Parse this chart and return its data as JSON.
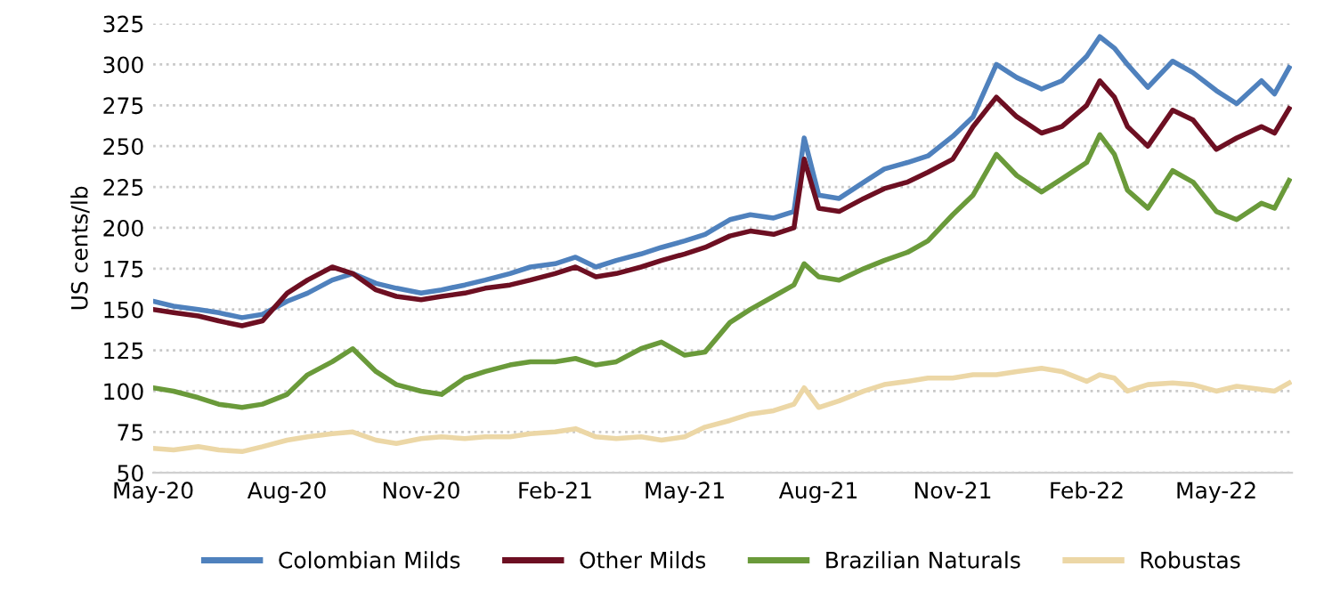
{
  "chart_data": {
    "type": "line",
    "ylabel": "US cents/lb",
    "x": [
      "2020-05-01",
      "2020-05-15",
      "2020-06-01",
      "2020-06-15",
      "2020-07-01",
      "2020-07-15",
      "2020-08-01",
      "2020-08-15",
      "2020-09-01",
      "2020-09-15",
      "2020-10-01",
      "2020-10-15",
      "2020-11-01",
      "2020-11-15",
      "2020-12-01",
      "2020-12-15",
      "2021-01-01",
      "2021-01-15",
      "2021-02-01",
      "2021-02-15",
      "2021-03-01",
      "2021-03-15",
      "2021-04-01",
      "2021-04-15",
      "2021-05-01",
      "2021-05-15",
      "2021-06-01",
      "2021-06-15",
      "2021-07-01",
      "2021-07-15",
      "2021-07-22",
      "2021-08-01",
      "2021-08-15",
      "2021-09-01",
      "2021-09-15",
      "2021-10-01",
      "2021-10-15",
      "2021-11-01",
      "2021-11-15",
      "2021-12-01",
      "2021-12-15",
      "2022-01-01",
      "2022-01-15",
      "2022-02-01",
      "2022-02-10",
      "2022-02-20",
      "2022-03-01",
      "2022-03-15",
      "2022-04-01",
      "2022-04-15",
      "2022-05-01",
      "2022-05-15",
      "2022-06-01",
      "2022-06-10",
      "2022-06-20"
    ],
    "series": [
      {
        "name": "Colombian Milds",
        "color": "#4f81bd",
        "values": [
          155,
          152,
          150,
          148,
          145,
          147,
          155,
          160,
          168,
          172,
          166,
          163,
          160,
          162,
          165,
          168,
          172,
          176,
          178,
          182,
          176,
          180,
          184,
          188,
          192,
          196,
          205,
          208,
          206,
          210,
          255,
          220,
          218,
          228,
          236,
          240,
          244,
          256,
          268,
          300,
          292,
          285,
          290,
          305,
          317,
          310,
          300,
          286,
          302,
          295,
          284,
          276,
          290,
          282,
          298
        ]
      },
      {
        "name": "Other Milds",
        "color": "#6d0f22",
        "values": [
          150,
          148,
          146,
          143,
          140,
          143,
          160,
          168,
          176,
          172,
          162,
          158,
          156,
          158,
          160,
          163,
          165,
          168,
          172,
          176,
          170,
          172,
          176,
          180,
          184,
          188,
          195,
          198,
          196,
          200,
          242,
          212,
          210,
          218,
          224,
          228,
          234,
          242,
          262,
          280,
          268,
          258,
          262,
          275,
          290,
          280,
          262,
          250,
          272,
          266,
          248,
          255,
          262,
          258,
          273
        ]
      },
      {
        "name": "Brazilian Naturals",
        "color": "#6a9a3a",
        "values": [
          102,
          100,
          96,
          92,
          90,
          92,
          98,
          110,
          118,
          126,
          112,
          104,
          100,
          98,
          108,
          112,
          116,
          118,
          118,
          120,
          116,
          118,
          126,
          130,
          122,
          124,
          142,
          150,
          158,
          165,
          178,
          170,
          168,
          175,
          180,
          185,
          192,
          208,
          220,
          245,
          232,
          222,
          230,
          240,
          257,
          245,
          223,
          212,
          235,
          228,
          210,
          205,
          215,
          212,
          229
        ]
      },
      {
        "name": "Robustas",
        "color": "#ecd7a6",
        "values": [
          65,
          64,
          66,
          64,
          63,
          66,
          70,
          72,
          74,
          75,
          70,
          68,
          71,
          72,
          71,
          72,
          72,
          74,
          75,
          77,
          72,
          71,
          72,
          70,
          72,
          78,
          82,
          86,
          88,
          92,
          102,
          90,
          94,
          100,
          104,
          106,
          108,
          108,
          110,
          110,
          112,
          114,
          112,
          106,
          110,
          108,
          100,
          104,
          105,
          104,
          100,
          103,
          101,
          100,
          105
        ]
      }
    ],
    "xlim": [
      "2020-05-01",
      "2022-06-22"
    ],
    "xticks": [
      {
        "value": "2020-05-01",
        "label": "May-20"
      },
      {
        "value": "2020-08-01",
        "label": "Aug-20"
      },
      {
        "value": "2020-11-01",
        "label": "Nov-20"
      },
      {
        "value": "2021-02-01",
        "label": "Feb-21"
      },
      {
        "value": "2021-05-01",
        "label": "May-21"
      },
      {
        "value": "2021-08-01",
        "label": "Aug-21"
      },
      {
        "value": "2021-11-01",
        "label": "Nov-21"
      },
      {
        "value": "2022-02-01",
        "label": "Feb-22"
      },
      {
        "value": "2022-05-01",
        "label": "May-22"
      }
    ],
    "ylim": [
      50,
      325
    ],
    "yticks": [
      50,
      75,
      100,
      125,
      150,
      175,
      200,
      225,
      250,
      275,
      300,
      325
    ],
    "grid": "y",
    "legend": "bottom",
    "marker": "none",
    "line_style": "solid"
  }
}
